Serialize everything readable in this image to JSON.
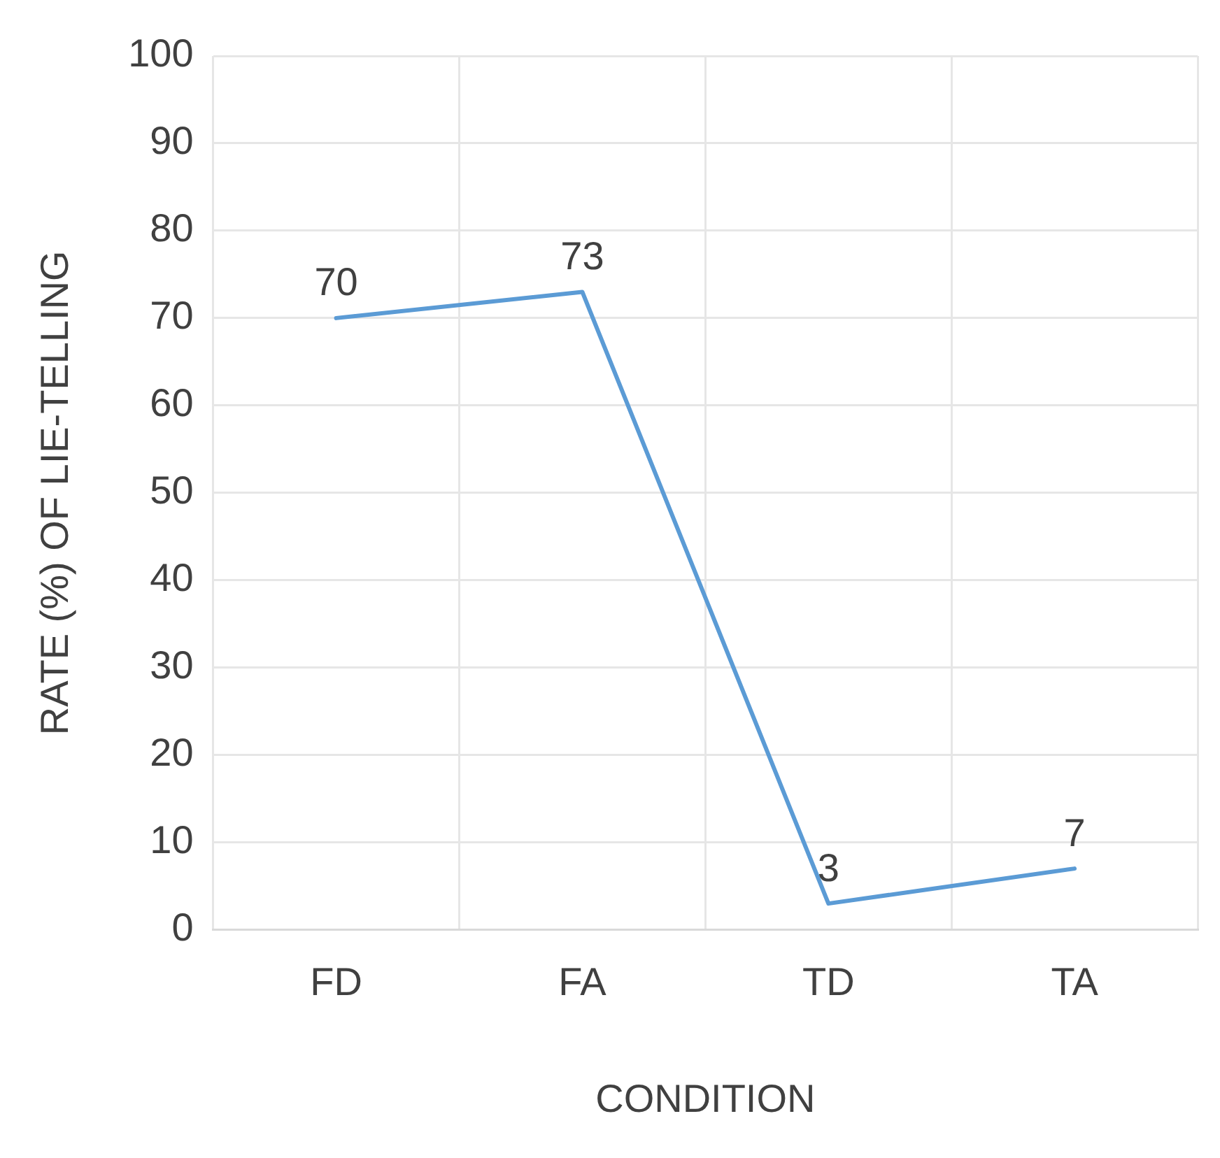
{
  "chart_data": {
    "type": "line",
    "xlabel": "CONDITION",
    "ylabel": "RATE (%) OF LIE-TELLING",
    "categories": [
      "FD",
      "FA",
      "TD",
      "TA"
    ],
    "series": [
      {
        "color": "#5b9bd5",
        "values": [
          70,
          73,
          3,
          7
        ]
      }
    ],
    "ylim": [
      0,
      100
    ],
    "yticks": [
      0,
      10,
      20,
      30,
      40,
      50,
      60,
      70,
      80,
      90,
      100
    ],
    "grid": true,
    "legend": false,
    "marker": "none",
    "line_style": "solid",
    "data_labels": true
  }
}
